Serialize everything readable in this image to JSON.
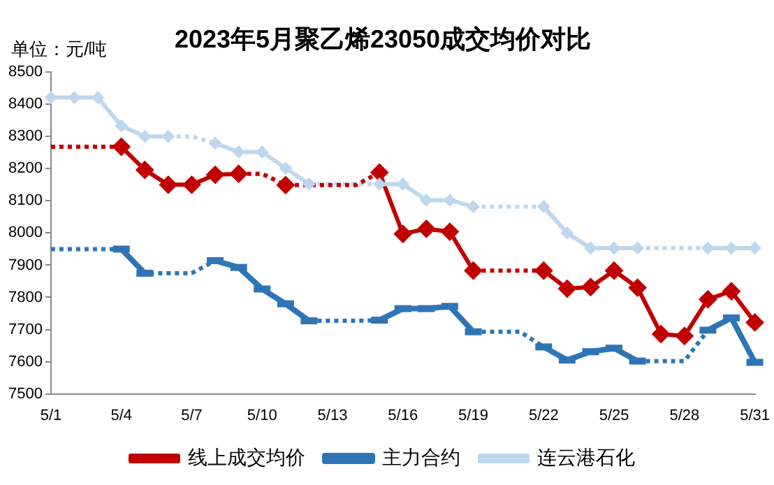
{
  "chart_data": {
    "type": "line",
    "title": "2023年5月聚乙烯23050成交均价对比",
    "ylabel": "单位：元/吨",
    "categories": [
      "5/1",
      null,
      null,
      "5/4",
      null,
      null,
      "5/7",
      null,
      null,
      "5/10",
      null,
      null,
      "5/13",
      null,
      null,
      "5/16",
      null,
      null,
      "5/19",
      null,
      null,
      "5/22",
      null,
      null,
      "5/25",
      null,
      null,
      "5/28",
      null,
      null,
      "5/31"
    ],
    "series": [
      {
        "name": "线上成交均价",
        "color": "#c00000",
        "marker": "diamond",
        "values": [
          null,
          null,
          null,
          8268,
          8196,
          8150,
          8150,
          8181,
          8184,
          null,
          8149,
          null,
          null,
          null,
          8188,
          7997,
          8013,
          8004,
          7883,
          null,
          null,
          7883,
          7827,
          7832,
          7883,
          7830,
          7686,
          7680,
          7794,
          7819,
          7722
        ]
      },
      {
        "color": "#c10000",
        "marker": "none",
        "line_style": "dotted",
        "values": [
          8268,
          8268,
          8268,
          8268,
          null,
          null,
          null,
          null,
          8184,
          8184,
          8149,
          8149,
          8149,
          8149,
          8188,
          null,
          null,
          null,
          7883,
          7883,
          7883,
          7883,
          null,
          null,
          null,
          null,
          null,
          null,
          null,
          null,
          null
        ]
      },
      {
        "name": "主力合约",
        "color": "#2e75b6",
        "marker": "square",
        "values": [
          null,
          null,
          null,
          7950,
          7875,
          null,
          null,
          7914,
          7893,
          7826,
          7780,
          7727,
          null,
          null,
          7729,
          7765,
          7765,
          7772,
          7693,
          null,
          null,
          7646,
          7605,
          7631,
          7642,
          7602,
          null,
          null,
          7698,
          7736,
          7598
        ]
      },
      {
        "color": "#2f75b6",
        "marker": "none",
        "line_style": "dotted",
        "values": [
          7950,
          7950,
          7950,
          7950,
          7875,
          7875,
          7875,
          7914,
          null,
          null,
          null,
          7727,
          7727,
          7727,
          7729,
          null,
          null,
          null,
          7693,
          7693,
          7693,
          7646,
          null,
          null,
          null,
          7602,
          7602,
          7602,
          7698,
          null,
          null
        ]
      },
      {
        "name": "连云港石化",
        "color": "#bdd7ee",
        "marker": "diamond",
        "values": [
          8421,
          8421,
          8421,
          8333,
          8300,
          8300,
          null,
          8279,
          8252,
          8252,
          8201,
          8152,
          null,
          null,
          8152,
          8152,
          8102,
          8102,
          8082,
          null,
          null,
          8082,
          8000,
          7953,
          7953,
          7953,
          null,
          null,
          7953,
          7953,
          7953
        ]
      },
      {
        "color": "#bed7ee",
        "marker": "none",
        "line_style": "dotted",
        "values": [
          null,
          null,
          null,
          null,
          null,
          8300,
          8300,
          8279,
          null,
          null,
          null,
          8152,
          8152,
          8152,
          8152,
          null,
          null,
          null,
          8082,
          8082,
          8082,
          8082,
          null,
          null,
          null,
          7953,
          7953,
          7953,
          7953,
          null,
          null
        ]
      }
    ],
    "ylim": [
      7500,
      8500
    ],
    "yticks": [
      7500,
      7600,
      7700,
      7800,
      7900,
      8000,
      8100,
      8200,
      8300,
      8400,
      8500
    ],
    "grid": false,
    "legend": "bottom"
  }
}
